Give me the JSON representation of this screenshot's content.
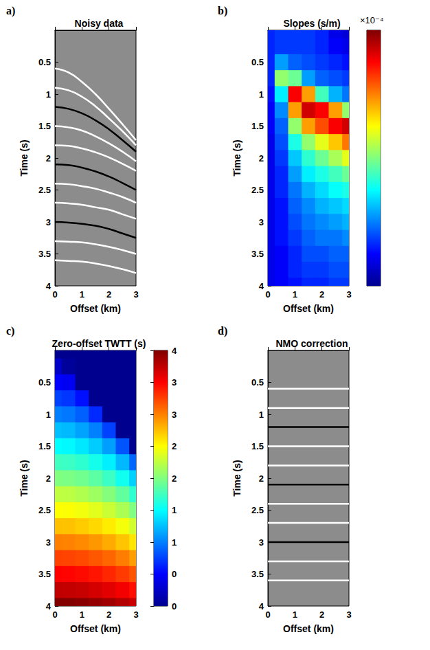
{
  "chart_data": [
    {
      "type": "line",
      "panel_label": "a)",
      "title": "Noisy data",
      "x_label": "Offset (km)",
      "y_label": "Time (s)",
      "xlim": [
        0,
        3
      ],
      "ylim": [
        0,
        4
      ],
      "xticks": [
        0,
        1,
        2,
        3
      ],
      "yticks": [
        0.5,
        1,
        1.5,
        2,
        2.5,
        3,
        3.5,
        4
      ],
      "grid": false,
      "x": [
        0,
        0.5,
        1,
        1.5,
        2,
        2.5,
        3
      ],
      "series": [
        {
          "color": "#ffffff",
          "values": [
            0.6,
            0.66,
            0.81,
            1.0,
            1.23,
            1.47,
            1.72
          ]
        },
        {
          "color": "#ffffff",
          "values": [
            0.9,
            0.94,
            1.04,
            1.19,
            1.38,
            1.58,
            1.8
          ]
        },
        {
          "color": "#000000",
          "values": [
            1.2,
            1.23,
            1.3,
            1.41,
            1.55,
            1.72,
            1.9
          ]
        },
        {
          "color": "#ffffff",
          "values": [
            1.5,
            1.52,
            1.57,
            1.66,
            1.77,
            1.9,
            2.05
          ]
        },
        {
          "color": "#ffffff",
          "values": [
            1.8,
            1.81,
            1.85,
            1.91,
            1.99,
            2.09,
            2.2
          ]
        },
        {
          "color": "#000000",
          "values": [
            2.1,
            2.11,
            2.15,
            2.21,
            2.29,
            2.39,
            2.5
          ]
        },
        {
          "color": "#ffffff",
          "values": [
            2.4,
            2.41,
            2.44,
            2.48,
            2.54,
            2.61,
            2.7
          ]
        },
        {
          "color": "#ffffff",
          "values": [
            2.7,
            2.71,
            2.73,
            2.77,
            2.81,
            2.88,
            2.95
          ]
        },
        {
          "color": "#000000",
          "values": [
            3.0,
            3.01,
            3.03,
            3.06,
            3.11,
            3.18,
            3.25
          ]
        },
        {
          "color": "#ffffff",
          "values": [
            3.3,
            3.31,
            3.32,
            3.35,
            3.39,
            3.44,
            3.5
          ]
        },
        {
          "color": "#ffffff",
          "values": [
            3.6,
            3.61,
            3.62,
            3.65,
            3.69,
            3.74,
            3.8
          ]
        }
      ]
    },
    {
      "type": "heatmap",
      "panel_label": "b)",
      "title": "Slopes (s/m)",
      "x_label": "Offset (km)",
      "y_label": "Time (s)",
      "xlim": [
        0,
        3
      ],
      "ylim": [
        0,
        4
      ],
      "xticks": [
        0,
        1,
        2,
        3
      ],
      "yticks": [
        0.5,
        1,
        1.5,
        2,
        2.5,
        3,
        3.5,
        4
      ],
      "grid": false,
      "x": [
        0,
        0.5,
        1,
        1.5,
        2,
        2.5,
        3
      ],
      "y": [
        0,
        0.25,
        0.5,
        0.75,
        1,
        1.25,
        1.5,
        1.75,
        2,
        2.25,
        2.5,
        2.75,
        3,
        3.25,
        3.5,
        3.75,
        4
      ],
      "values": [
        [
          8e-05,
          9e-05,
          9e-05,
          9e-05,
          8e-05,
          5e-05,
          4e-05
        ],
        [
          8e-05,
          9e-05,
          9e-05,
          9e-05,
          8e-05,
          6e-05,
          5e-05
        ],
        [
          8e-05,
          0.00014,
          0.00011,
          0.0001,
          9e-05,
          8e-05,
          7e-05
        ],
        [
          8e-05,
          0.00026,
          0.00024,
          0.00014,
          0.00011,
          0.0001,
          9e-05
        ],
        [
          7e-05,
          0.00018,
          0.00044,
          0.00036,
          0.00022,
          0.00015,
          0.00012
        ],
        [
          6e-05,
          0.00013,
          0.00036,
          0.00046,
          0.00044,
          0.00036,
          0.00026
        ],
        [
          6e-05,
          0.00011,
          0.00026,
          0.00036,
          0.0004,
          0.00044,
          0.00046
        ],
        [
          5e-05,
          0.0001,
          0.0002,
          0.00026,
          0.0003,
          0.00034,
          0.00038
        ],
        [
          5e-05,
          9e-05,
          0.00016,
          0.00021,
          0.00024,
          0.00027,
          0.0003
        ],
        [
          5e-05,
          8e-05,
          0.00014,
          0.00018,
          0.0002,
          0.00022,
          0.00024
        ],
        [
          5e-05,
          8e-05,
          0.00012,
          0.00015,
          0.00017,
          0.00019,
          0.0002
        ],
        [
          5e-05,
          7e-05,
          0.00011,
          0.00013,
          0.00015,
          0.00016,
          0.00017
        ],
        [
          5e-05,
          7e-05,
          0.0001,
          0.00012,
          0.00013,
          0.00014,
          0.00015
        ],
        [
          5e-05,
          7e-05,
          9e-05,
          0.00011,
          0.00012,
          0.00012,
          0.00013
        ],
        [
          5e-05,
          6e-05,
          8e-05,
          0.0001,
          0.0001,
          0.00011,
          0.00011
        ],
        [
          5e-05,
          6e-05,
          8e-05,
          9e-05,
          9e-05,
          0.0001,
          0.0001
        ],
        [
          5e-05,
          6e-05,
          7e-05,
          8e-05,
          8e-05,
          9e-05,
          9e-05
        ]
      ],
      "colorbar": {
        "range": [
          0,
          0.0005
        ],
        "label": "×10⁻⁴"
      }
    },
    {
      "type": "heatmap",
      "panel_label": "c)",
      "title": "Zero-offset TWTT (s)",
      "x_label": "Offset (km)",
      "y_label": "Time (s)",
      "xlim": [
        0,
        3
      ],
      "ylim": [
        0,
        4
      ],
      "xticks": [
        0,
        1,
        2,
        3
      ],
      "yticks": [
        0.5,
        1,
        1.5,
        2,
        2.5,
        3,
        3.5,
        4
      ],
      "grid": false,
      "x": [
        0,
        0.5,
        1,
        1.5,
        2,
        2.5,
        3
      ],
      "y": [
        0,
        0.25,
        0.5,
        0.75,
        1,
        1.25,
        1.5,
        1.75,
        2,
        2.25,
        2.5,
        2.75,
        3,
        3.25,
        3.5,
        3.75,
        4
      ],
      "values": [
        [
          0,
          0,
          0,
          0,
          0,
          0,
          0
        ],
        [
          0.25,
          0.05,
          0,
          0,
          0,
          0,
          0
        ],
        [
          0.5,
          0.44,
          0,
          0,
          0,
          0,
          0
        ],
        [
          0.75,
          0.71,
          0.56,
          0,
          0,
          0,
          0
        ],
        [
          1,
          0.97,
          0.87,
          0.66,
          0,
          0,
          0
        ],
        [
          1.25,
          1.23,
          1.14,
          1.0,
          0.75,
          0,
          0
        ],
        [
          1.5,
          1.48,
          1.41,
          1.3,
          1.12,
          0.83,
          0
        ],
        [
          1.75,
          1.73,
          1.68,
          1.58,
          1.44,
          1.22,
          0.9
        ],
        [
          2,
          1.98,
          1.94,
          1.86,
          1.73,
          1.56,
          1.32
        ],
        [
          2.25,
          2.24,
          2.19,
          2.12,
          2.02,
          1.88,
          1.68
        ],
        [
          2.5,
          2.49,
          2.45,
          2.39,
          2.29,
          2.17,
          2.0
        ],
        [
          2.75,
          2.74,
          2.7,
          2.65,
          2.57,
          2.46,
          2.32
        ],
        [
          3,
          2.99,
          2.96,
          2.91,
          2.83,
          2.73,
          2.6
        ],
        [
          3.25,
          3.24,
          3.21,
          3.16,
          3.1,
          3.01,
          2.88
        ],
        [
          3.5,
          3.49,
          3.46,
          3.42,
          3.35,
          3.27,
          3.17
        ],
        [
          3.75,
          3.74,
          3.72,
          3.67,
          3.61,
          3.54,
          3.44
        ],
        [
          4,
          3.99,
          3.97,
          3.93,
          3.87,
          3.8,
          3.71
        ]
      ],
      "colorbar": {
        "range": [
          0,
          4
        ],
        "ticks": [
          {
            "value": 0,
            "label": "0"
          },
          {
            "value": 0.5,
            "label": "0"
          },
          {
            "value": 1,
            "label": "1"
          },
          {
            "value": 1.5,
            "label": "1"
          },
          {
            "value": 2,
            "label": "2"
          },
          {
            "value": 2.5,
            "label": "2"
          },
          {
            "value": 3,
            "label": "3"
          },
          {
            "value": 3.5,
            "label": "3"
          },
          {
            "value": 4,
            "label": "4"
          }
        ]
      }
    },
    {
      "type": "line",
      "panel_label": "d)",
      "title": "NMO correction",
      "x_label": "Offset (km)",
      "y_label": "Time (s)",
      "xlim": [
        0,
        3
      ],
      "ylim": [
        0,
        4
      ],
      "xticks": [
        0,
        1,
        2,
        3
      ],
      "yticks": [
        0.5,
        1,
        1.5,
        2,
        2.5,
        3,
        3.5,
        4
      ],
      "grid": false,
      "x": [
        0,
        3
      ],
      "series": [
        {
          "color": "#ffffff",
          "values": [
            0.6,
            0.6
          ]
        },
        {
          "color": "#ffffff",
          "values": [
            0.9,
            0.9
          ]
        },
        {
          "color": "#000000",
          "values": [
            1.2,
            1.2
          ]
        },
        {
          "color": "#ffffff",
          "values": [
            1.5,
            1.5
          ]
        },
        {
          "color": "#ffffff",
          "values": [
            1.8,
            1.8
          ]
        },
        {
          "color": "#000000",
          "values": [
            2.1,
            2.1
          ]
        },
        {
          "color": "#ffffff",
          "values": [
            2.4,
            2.4
          ]
        },
        {
          "color": "#ffffff",
          "values": [
            2.7,
            2.7
          ]
        },
        {
          "color": "#000000",
          "values": [
            3.0,
            3.0
          ]
        },
        {
          "color": "#ffffff",
          "values": [
            3.3,
            3.3
          ]
        },
        {
          "color": "#ffffff",
          "values": [
            3.6,
            3.6
          ]
        }
      ]
    }
  ]
}
